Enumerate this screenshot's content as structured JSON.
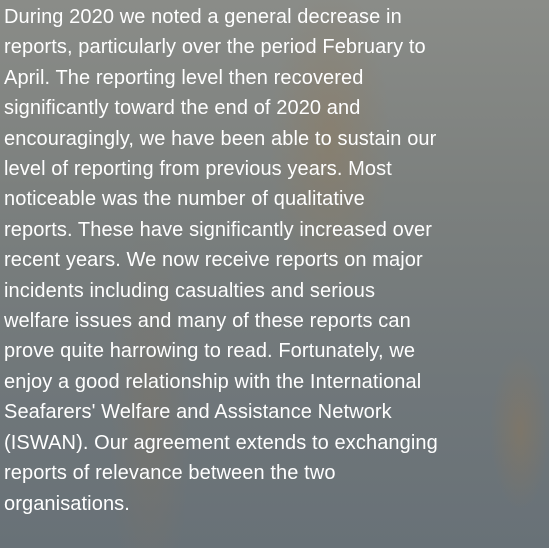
{
  "paragraph": {
    "lines": [
      "During 2020 we noted a general decrease in",
      "reports, particularly over the period February to",
      "April. The reporting level then recovered",
      "significantly toward the end of 2020 and",
      "encouragingly, we have been able to sustain our",
      "level of reporting from previous years. Most",
      "noticeable was the number of qualitative",
      "reports. These have significantly increased over",
      "recent years. We now receive reports on major",
      "incidents including casualties and serious",
      "welfare issues and many of these reports can",
      "prove quite harrowing to read. Fortunately, we",
      "enjoy a good relationship with the International",
      "Seafarers' Welfare and Assistance Network",
      "(ISWAN). Our agreement extends to exchanging",
      "reports of relevance between the two",
      "organisations."
    ]
  }
}
